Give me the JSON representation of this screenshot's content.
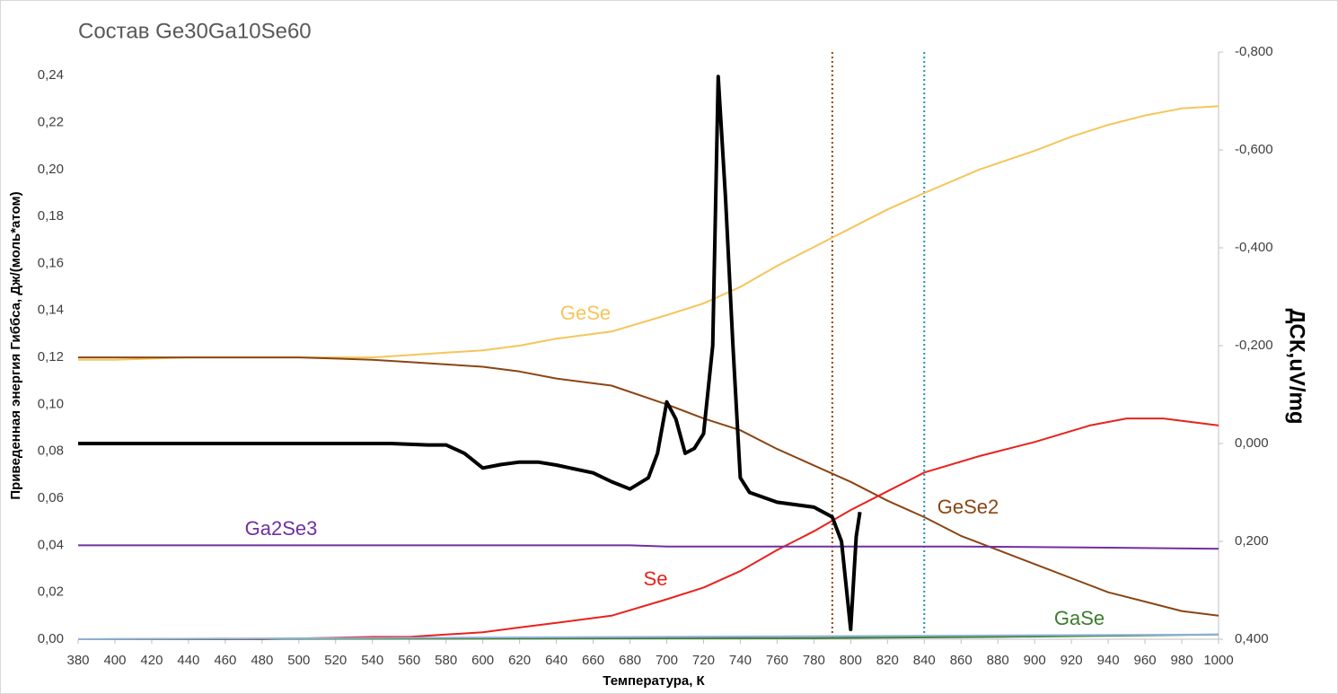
{
  "chart_data": {
    "type": "line",
    "title": "Состав Ge30Ga10Se60",
    "xlabel": "Температура, К",
    "ylabel": "Приведенная энергия Гиббса, Дж/(моль*атом)",
    "y2label": "ДСК,uV/mg",
    "xlim": [
      380,
      1000
    ],
    "xticks": [
      380,
      400,
      420,
      440,
      460,
      480,
      500,
      520,
      540,
      560,
      580,
      600,
      620,
      640,
      660,
      680,
      700,
      720,
      740,
      760,
      780,
      800,
      820,
      840,
      860,
      880,
      900,
      920,
      940,
      960,
      980,
      1000
    ],
    "ylim": [
      0,
      0.25
    ],
    "yticks": [
      {
        "value": 0,
        "label": "0,00"
      },
      {
        "value": 0.02,
        "label": "0,02"
      },
      {
        "value": 0.04,
        "label": "0,04"
      },
      {
        "value": 0.06,
        "label": "0,06"
      },
      {
        "value": 0.08,
        "label": "0,08"
      },
      {
        "value": 0.1,
        "label": "0,10"
      },
      {
        "value": 0.12,
        "label": "0,12"
      },
      {
        "value": 0.14,
        "label": "0,14"
      },
      {
        "value": 0.16,
        "label": "0,16"
      },
      {
        "value": 0.18,
        "label": "0,18"
      },
      {
        "value": 0.2,
        "label": "0,20"
      },
      {
        "value": 0.22,
        "label": "0,22"
      },
      {
        "value": 0.24,
        "label": "0,24"
      }
    ],
    "y2lim": [
      0.4,
      -0.8
    ],
    "y2ticks": [
      {
        "value": -0.8,
        "label": "-0,800"
      },
      {
        "value": -0.6,
        "label": "-0,600"
      },
      {
        "value": -0.4,
        "label": "-0,400"
      },
      {
        "value": -0.2,
        "label": "-0,200"
      },
      {
        "value": 0,
        "label": "0,000"
      },
      {
        "value": 0.2,
        "label": "0,200"
      },
      {
        "value": 0.4,
        "label": "0,400"
      }
    ],
    "vlines": [
      {
        "value": 790,
        "color": "#8b4513"
      },
      {
        "value": 840,
        "color": "#1f8fbf"
      }
    ],
    "series": [
      {
        "name": "GeSe",
        "color": "#f5c55a",
        "x": [
          380,
          400,
          440,
          500,
          540,
          560,
          580,
          600,
          620,
          640,
          670,
          700,
          720,
          740,
          760,
          780,
          800,
          820,
          840,
          870,
          900,
          920,
          940,
          960,
          980,
          1000
        ],
        "values": [
          0.119,
          0.119,
          0.12,
          0.12,
          0.12,
          0.121,
          0.122,
          0.123,
          0.125,
          0.128,
          0.131,
          0.138,
          0.143,
          0.15,
          0.159,
          0.167,
          0.175,
          0.183,
          0.19,
          0.2,
          0.208,
          0.214,
          0.219,
          0.223,
          0.226,
          0.227
        ]
      },
      {
        "name": "GeSe2",
        "color": "#8b4513",
        "x": [
          380,
          500,
          540,
          560,
          580,
          600,
          620,
          640,
          670,
          700,
          720,
          740,
          760,
          780,
          800,
          820,
          840,
          860,
          880,
          900,
          920,
          940,
          960,
          980,
          1000
        ],
        "values": [
          0.12,
          0.12,
          0.119,
          0.118,
          0.117,
          0.116,
          0.114,
          0.111,
          0.108,
          0.1,
          0.094,
          0.089,
          0.081,
          0.074,
          0.067,
          0.059,
          0.052,
          0.044,
          0.038,
          0.032,
          0.026,
          0.02,
          0.016,
          0.012,
          0.01
        ]
      },
      {
        "name": "Se",
        "color": "#e8221d",
        "x": [
          380,
          480,
          540,
          560,
          580,
          600,
          620,
          640,
          670,
          700,
          720,
          740,
          760,
          780,
          800,
          820,
          840,
          870,
          900,
          930,
          950,
          970,
          1000
        ],
        "values": [
          0,
          0,
          0.001,
          0.001,
          0.002,
          0.003,
          0.005,
          0.007,
          0.01,
          0.017,
          0.022,
          0.029,
          0.038,
          0.046,
          0.055,
          0.063,
          0.071,
          0.078,
          0.084,
          0.091,
          0.094,
          0.094,
          0.091
        ]
      },
      {
        "name": "Ga2Se3",
        "color": "#7030a0",
        "x": [
          380,
          680,
          700,
          860,
          940,
          1000
        ],
        "values": [
          0.04,
          0.04,
          0.0395,
          0.0395,
          0.039,
          0.0385
        ]
      },
      {
        "name": "GaSe",
        "color": "#3a7d2c",
        "x": [
          380,
          780,
          880,
          940,
          1000
        ],
        "values": [
          0,
          0.0005,
          0.001,
          0.0015,
          0.002
        ]
      },
      {
        "color": "#8fb0d8",
        "x": [
          380,
          1000
        ],
        "values": [
          0,
          0.002
        ]
      },
      {
        "color": "#000000",
        "axis": "y2",
        "x": [
          380,
          550,
          570,
          580,
          590,
          600,
          610,
          620,
          630,
          640,
          660,
          670,
          680,
          690,
          695,
          700,
          705,
          710,
          715,
          720,
          725,
          728,
          732,
          736,
          740,
          745,
          760,
          780,
          790,
          795,
          800,
          803,
          805
        ],
        "values": [
          0,
          0,
          0.003,
          0.003,
          0.02,
          0.05,
          0.043,
          0.038,
          0.038,
          0.044,
          0.06,
          0.078,
          0.093,
          0.07,
          0.02,
          -0.085,
          -0.05,
          0.02,
          0.01,
          -0.02,
          -0.2,
          -0.75,
          -0.5,
          -0.2,
          0.07,
          0.1,
          0.12,
          0.13,
          0.15,
          0.2,
          0.38,
          0.19,
          0.14
        ]
      }
    ]
  }
}
